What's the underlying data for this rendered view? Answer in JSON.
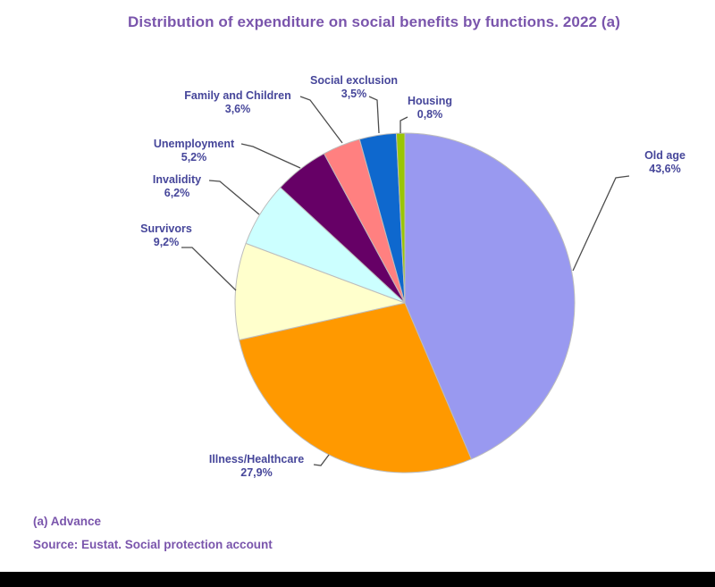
{
  "title": "Distribution of expenditure on social benefits by functions. 2022 (a)",
  "notes": {
    "footnote": "(a) Advance",
    "source": "Source: Eustat. Social protection account"
  },
  "chart_data": {
    "type": "pie",
    "title": "Distribution of expenditure on social benefits by functions. 2022 (a)",
    "unit": "%",
    "decimal_separator": "comma",
    "start_angle": "12 o'clock",
    "direction": "clockwise",
    "legend": "none (direct callout labels with leader lines)",
    "slices": [
      {
        "label": "Old age",
        "value": 43.6,
        "display_value": "43,6%",
        "color": "#9999F0"
      },
      {
        "label": "Illness/Healthcare",
        "value": 27.9,
        "display_value": "27,9%",
        "color": "#FF9900"
      },
      {
        "label": "Survivors",
        "value": 9.2,
        "display_value": "9,2%",
        "color": "#FFFFCC"
      },
      {
        "label": "Invalidity",
        "value": 6.2,
        "display_value": "6,2%",
        "color": "#CCFFFF"
      },
      {
        "label": "Unemployment",
        "value": 5.2,
        "display_value": "5,2%",
        "color": "#660066"
      },
      {
        "label": "Family and Children",
        "value": 3.6,
        "display_value": "3,6%",
        "color": "#FF8080"
      },
      {
        "label": "Social exclusion",
        "value": 3.5,
        "display_value": "3,5%",
        "color": "#0E68CE"
      },
      {
        "label": "Housing",
        "value": 0.8,
        "display_value": "0,8%",
        "color": "#9AC603"
      }
    ]
  },
  "theme": {
    "title_color": "#7A55AC",
    "label_color": "#46469A",
    "leader_line_color": "#4D4D4D",
    "slice_border_color": "#BDBDBD",
    "bottom_bar_color": "#000000"
  }
}
